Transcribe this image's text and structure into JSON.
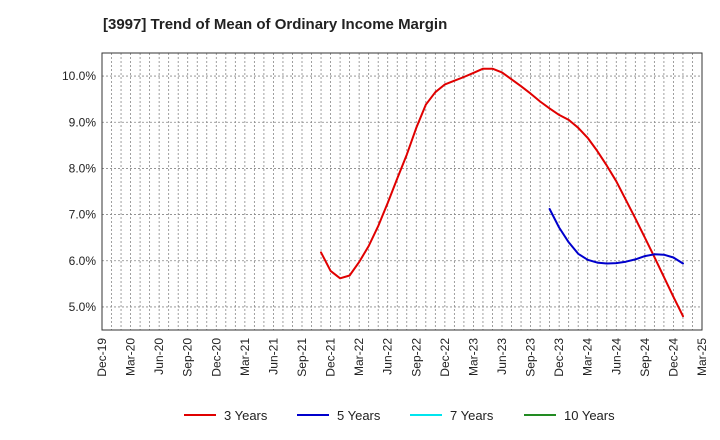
{
  "title": "[3997]  Trend of Mean of Ordinary Income Margin",
  "chart_data": {
    "type": "line",
    "title": "[3997]  Trend of Mean of Ordinary Income Margin",
    "xlabel": "",
    "ylabel": "",
    "ylim": [
      4.5,
      10.5
    ],
    "y_ticks": [
      5.0,
      6.0,
      7.0,
      8.0,
      9.0,
      10.0
    ],
    "y_tick_labels": [
      "5.0%",
      "6.0%",
      "7.0%",
      "8.0%",
      "9.0%",
      "10.0%"
    ],
    "x_tick_labels": [
      "Dec-19",
      "Mar-20",
      "Jun-20",
      "Sep-20",
      "Dec-20",
      "Mar-21",
      "Jun-21",
      "Sep-21",
      "Dec-21",
      "Mar-22",
      "Jun-22",
      "Sep-22",
      "Dec-22",
      "Mar-23",
      "Jun-23",
      "Sep-23",
      "Dec-23",
      "Mar-24",
      "Jun-24",
      "Sep-24",
      "Dec-24",
      "Mar-25"
    ],
    "grid": true,
    "legend_position": "bottom",
    "series": [
      {
        "name": "3 Years",
        "color": "#e00000",
        "points": [
          [
            "Nov-21",
            6.18
          ],
          [
            "Dec-21",
            5.78
          ],
          [
            "Jan-22",
            5.62
          ],
          [
            "Feb-22",
            5.68
          ],
          [
            "Mar-22",
            5.97
          ],
          [
            "Apr-22",
            6.32
          ],
          [
            "May-22",
            6.75
          ],
          [
            "Jun-22",
            7.25
          ],
          [
            "Jul-22",
            7.78
          ],
          [
            "Aug-22",
            8.3
          ],
          [
            "Sep-22",
            8.88
          ],
          [
            "Oct-22",
            9.38
          ],
          [
            "Nov-22",
            9.65
          ],
          [
            "Dec-22",
            9.82
          ],
          [
            "Jan-23",
            9.9
          ],
          [
            "Feb-23",
            9.98
          ],
          [
            "Mar-23",
            10.07
          ],
          [
            "Apr-23",
            10.16
          ],
          [
            "May-23",
            10.16
          ],
          [
            "Jun-23",
            10.08
          ],
          [
            "Jul-23",
            9.93
          ],
          [
            "Aug-23",
            9.78
          ],
          [
            "Sep-23",
            9.62
          ],
          [
            "Oct-23",
            9.45
          ],
          [
            "Nov-23",
            9.3
          ],
          [
            "Dec-23",
            9.16
          ],
          [
            "Jan-24",
            9.05
          ],
          [
            "Feb-24",
            8.88
          ],
          [
            "Mar-24",
            8.66
          ],
          [
            "Apr-24",
            8.38
          ],
          [
            "May-24",
            8.06
          ],
          [
            "Jun-24",
            7.72
          ],
          [
            "Jul-24",
            7.32
          ],
          [
            "Aug-24",
            6.92
          ],
          [
            "Sep-24",
            6.5
          ],
          [
            "Oct-24",
            6.08
          ],
          [
            "Nov-24",
            5.65
          ],
          [
            "Dec-24",
            5.22
          ],
          [
            "Jan-25",
            4.8
          ]
        ]
      },
      {
        "name": "5 Years",
        "color": "#0000cc",
        "points": [
          [
            "Nov-23",
            7.12
          ],
          [
            "Dec-23",
            6.72
          ],
          [
            "Jan-24",
            6.4
          ],
          [
            "Feb-24",
            6.15
          ],
          [
            "Mar-24",
            6.02
          ],
          [
            "Apr-24",
            5.96
          ],
          [
            "May-24",
            5.94
          ],
          [
            "Jun-24",
            5.95
          ],
          [
            "Jul-24",
            5.98
          ],
          [
            "Aug-24",
            6.03
          ],
          [
            "Sep-24",
            6.1
          ],
          [
            "Oct-24",
            6.14
          ],
          [
            "Nov-24",
            6.13
          ],
          [
            "Dec-24",
            6.07
          ],
          [
            "Jan-25",
            5.94
          ]
        ]
      },
      {
        "name": "7 Years",
        "color": "#00e5ee",
        "points": []
      },
      {
        "name": "10 Years",
        "color": "#228b22",
        "points": []
      }
    ]
  }
}
